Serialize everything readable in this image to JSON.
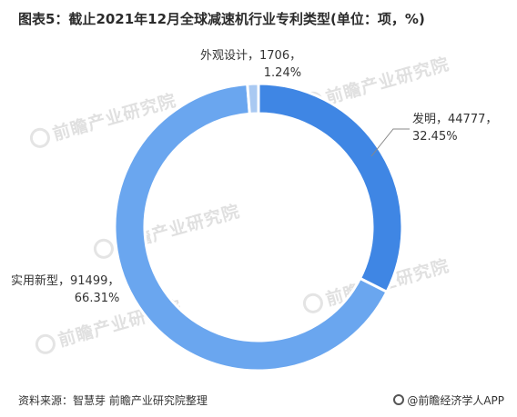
{
  "chart_data": {
    "type": "pie",
    "title": "图表5：截止2021年12月全球减速机行业专利类型(单位：项，%)",
    "slices": [
      {
        "name": "发明",
        "value": 44777,
        "percent": "32.45%",
        "value_text": "发明，44777，",
        "percent_text": "32.45%",
        "color": "#3f86e4"
      },
      {
        "name": "实用新型",
        "value": 91499,
        "percent": "66.31%",
        "value_text": "实用新型，91499，",
        "percent_text": "66.31%",
        "color": "#6aa6ef"
      },
      {
        "name": "外观设计",
        "value": 1706,
        "percent": "1.24%",
        "value_text": "外观设计，1706，",
        "percent_text": "1.24%",
        "color": "#a9c9f2"
      }
    ]
  },
  "watermark_text": "前瞻产业研究院",
  "footer": {
    "source": "资料来源：智慧芽 前瞻产业研究院整理",
    "brand": "@前瞻经济学人APP"
  }
}
